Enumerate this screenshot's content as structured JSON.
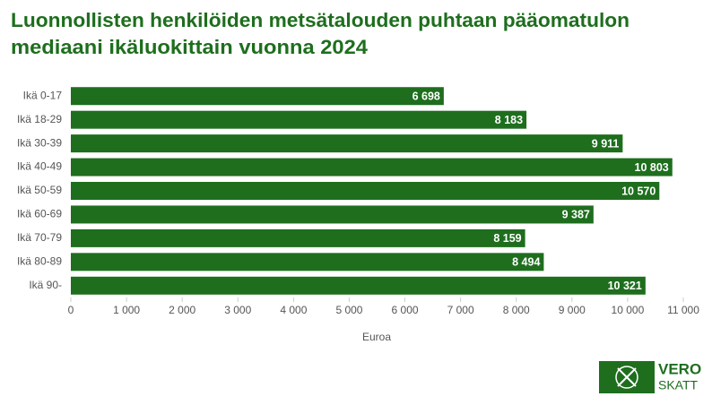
{
  "chart_data": {
    "type": "hbar",
    "title": [
      "Luonnollisten henkilöiden metsätalouden puhtaan pääomatulon",
      "mediaani ikäluokittain vuonna 2024"
    ],
    "categories": [
      "Ikä 0-17",
      "Ikä 18-29",
      "Ikä 30-39",
      "Ikä 40-49",
      "Ikä 50-59",
      "Ikä 60-69",
      "Ikä 70-79",
      "Ikä 80-89",
      "Ikä 90-"
    ],
    "values": [
      6698,
      8183,
      9911,
      10803,
      10570,
      9387,
      8159,
      8494,
      10321
    ],
    "value_labels": [
      "6 698",
      "8 183",
      "9 911",
      "10 803",
      "10 570",
      "9 387",
      "8 159",
      "8 494",
      "10 321"
    ],
    "color": "#1e6e1e",
    "xlabel": "Euroa",
    "xlim": [
      0,
      11000
    ],
    "xticks": [
      0,
      {
        "value": 1000,
        "label": "1 000"
      },
      {
        "value": 2000,
        "label": "2 000"
      },
      {
        "value": 3000,
        "label": "3 000"
      },
      {
        "value": 4000,
        "label": "4 000"
      },
      {
        "value": 5000,
        "label": "5 000"
      },
      {
        "value": 6000,
        "label": "6 000"
      },
      {
        "value": 7000,
        "label": "7 000"
      },
      {
        "value": 8000,
        "label": "8 000"
      },
      {
        "value": 9000,
        "label": "9 000"
      },
      {
        "value": 10000,
        "label": "10 000"
      },
      {
        "value": 11000,
        "label": "11 000"
      }
    ],
    "grid": false,
    "logo": [
      "VERO",
      "SKATT"
    ]
  }
}
